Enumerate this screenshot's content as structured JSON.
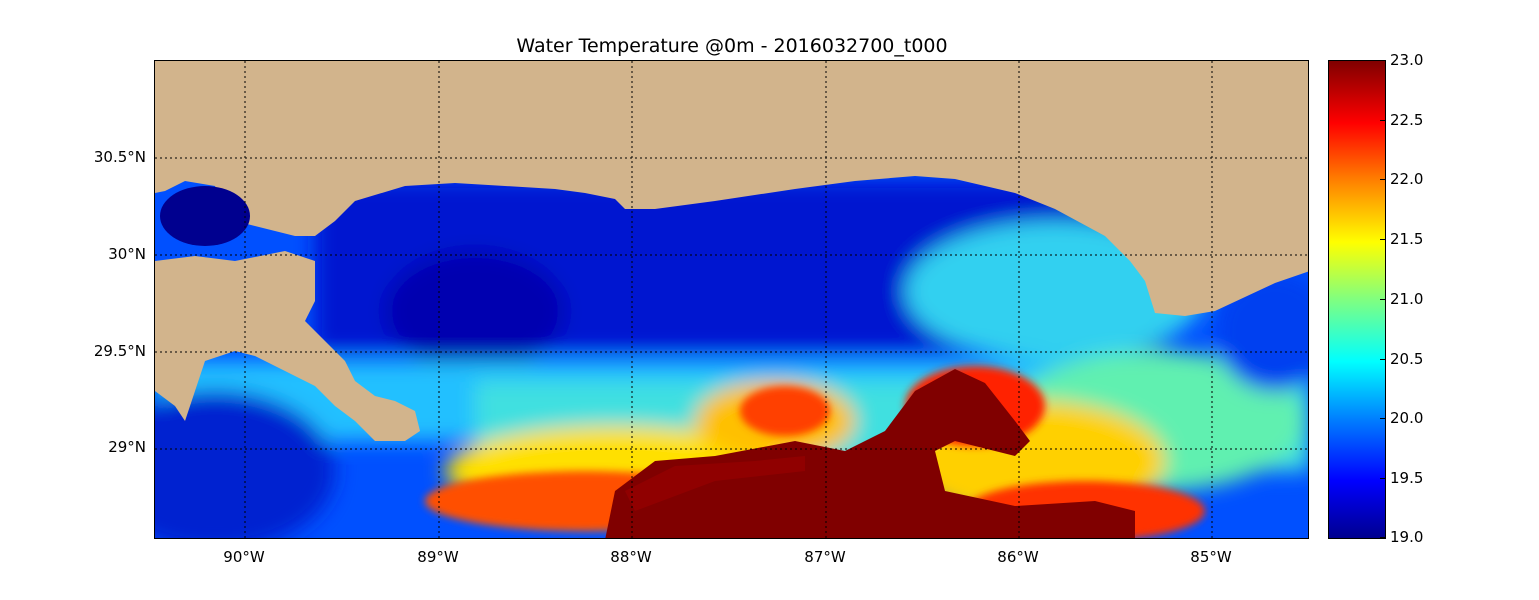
{
  "title": "Water Temperature @0m - 2016032700_t000",
  "map": {
    "land_color": "#d2b48c",
    "lat_labels": [
      "30.5°N",
      "30°N",
      "29.5°N",
      "29°N"
    ],
    "lon_labels": [
      "90°W",
      "89°W",
      "88°W",
      "87°W",
      "86°W",
      "85°W"
    ]
  },
  "colorbar": {
    "colormap": "jet",
    "min": 19.0,
    "max": 23.0,
    "ticks": [
      "23.0",
      "22.5",
      "22.0",
      "21.5",
      "21.0",
      "20.5",
      "20.0",
      "19.5",
      "19.0"
    ]
  }
}
